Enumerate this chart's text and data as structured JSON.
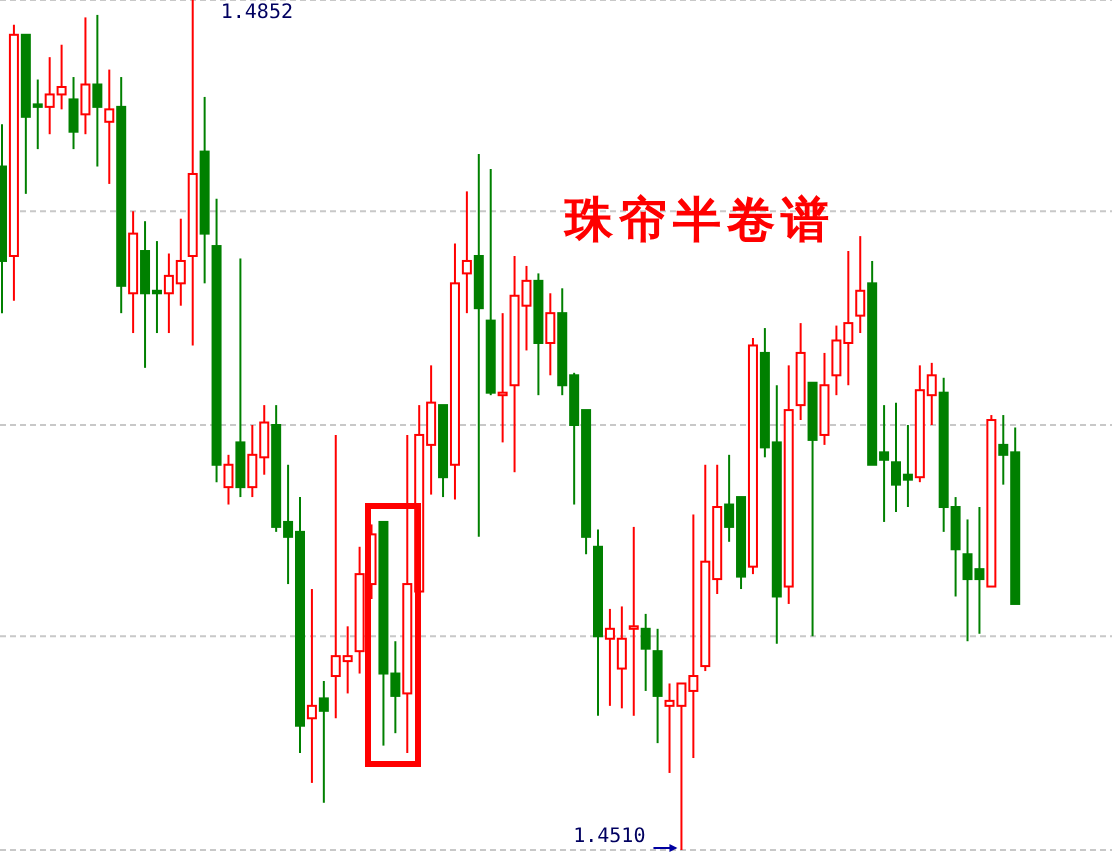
{
  "chart_data": {
    "type": "candlestick",
    "title": "珠帘半卷谱",
    "categories": [
      null,
      null,
      null,
      null,
      null,
      null,
      null,
      null,
      null,
      null,
      null,
      null,
      null,
      null,
      null,
      null,
      null,
      null,
      null,
      null,
      null,
      null,
      null,
      null,
      null,
      null,
      null,
      null,
      null,
      null,
      null,
      null,
      null,
      null,
      null,
      null,
      null,
      null,
      null,
      null,
      null,
      null,
      null,
      null,
      null,
      null,
      null,
      null,
      null,
      null,
      null,
      null,
      null,
      null,
      null,
      null,
      null,
      null,
      null,
      null,
      null,
      null,
      null,
      null,
      null,
      null,
      null,
      null,
      null,
      null,
      null,
      null,
      null,
      null,
      null,
      null,
      null,
      null,
      null,
      null,
      null,
      null,
      null,
      null,
      null,
      null
    ],
    "ohlc": [
      [
        1.4785,
        1.4802,
        1.4726,
        1.4747
      ],
      [
        1.4749,
        1.4842,
        1.4731,
        1.4838
      ],
      [
        1.4838,
        1.4838,
        1.4774,
        1.4805
      ],
      [
        1.481,
        1.482,
        1.4792,
        1.4809
      ],
      [
        1.4809,
        1.4829,
        1.4798,
        1.4814
      ],
      [
        1.4814,
        1.4834,
        1.4808,
        1.4817
      ],
      [
        1.4812,
        1.4821,
        1.4792,
        1.4799
      ],
      [
        1.4806,
        1.4845,
        1.4798,
        1.4818
      ],
      [
        1.4818,
        1.4846,
        1.4785,
        1.4809
      ],
      [
        1.4803,
        1.4824,
        1.4778,
        1.4808
      ],
      [
        1.4809,
        1.4821,
        1.4726,
        1.4737
      ],
      [
        1.4734,
        1.4767,
        1.4718,
        1.4758
      ],
      [
        1.4751,
        1.4763,
        1.4704,
        1.4734
      ],
      [
        1.4735,
        1.4755,
        1.4718,
        1.4734
      ],
      [
        1.4734,
        1.475,
        1.4718,
        1.4741
      ],
      [
        1.4738,
        1.4764,
        1.4729,
        1.4747
      ],
      [
        1.4749,
        1.4852,
        1.4713,
        1.4782
      ],
      [
        1.4791,
        1.4813,
        1.4738,
        1.4758
      ],
      [
        1.4753,
        1.4772,
        1.4658,
        1.4665
      ],
      [
        1.4656,
        1.4669,
        1.4649,
        1.4665
      ],
      [
        1.4674,
        1.4748,
        1.4652,
        1.4656
      ],
      [
        1.4656,
        1.4681,
        1.4652,
        1.4669
      ],
      [
        1.4668,
        1.4689,
        1.4661,
        1.4682
      ],
      [
        1.4681,
        1.4689,
        1.4638,
        1.464
      ],
      [
        1.4642,
        1.4665,
        1.4617,
        1.4636
      ],
      [
        1.4638,
        1.4652,
        1.4549,
        1.456
      ],
      [
        1.4563,
        1.4615,
        1.4537,
        1.4568
      ],
      [
        1.4571,
        1.4578,
        1.4529,
        1.4566
      ],
      [
        1.458,
        1.4677,
        1.4563,
        1.4588
      ],
      [
        1.4586,
        1.46,
        1.4573,
        1.4588
      ],
      [
        1.459,
        1.4632,
        1.4581,
        1.4621
      ],
      [
        1.4617,
        1.4641,
        1.4611,
        1.4637
      ],
      [
        1.4642,
        1.4642,
        1.4552,
        1.4581
      ],
      [
        1.4581,
        1.4594,
        1.4557,
        1.4572
      ],
      [
        1.4573,
        1.4677,
        1.4549,
        1.4617
      ],
      [
        1.4614,
        1.4689,
        1.4601,
        1.4677
      ],
      [
        1.4673,
        1.4705,
        1.4653,
        1.469
      ],
      [
        1.4689,
        1.4689,
        1.4652,
        1.466
      ],
      [
        1.4665,
        1.4754,
        1.4651,
        1.4738
      ],
      [
        1.4742,
        1.4775,
        1.4726,
        1.4747
      ],
      [
        1.4749,
        1.479,
        1.4636,
        1.4728
      ],
      [
        1.4723,
        1.4784,
        1.4693,
        1.4694
      ],
      [
        1.4693,
        1.4726,
        1.4674,
        1.4694
      ],
      [
        1.4697,
        1.4749,
        1.4662,
        1.4733
      ],
      [
        1.4729,
        1.4745,
        1.4711,
        1.4739
      ],
      [
        1.4739,
        1.4742,
        1.4693,
        1.4714
      ],
      [
        1.4714,
        1.4734,
        1.4701,
        1.4726
      ],
      [
        1.4726,
        1.4736,
        1.4693,
        1.4697
      ],
      [
        1.4701,
        1.4702,
        1.4649,
        1.4681
      ],
      [
        1.4687,
        1.4687,
        1.4629,
        1.4636
      ],
      [
        1.4632,
        1.4639,
        1.4564,
        1.4596
      ],
      [
        1.4595,
        1.4607,
        1.4568,
        1.4599
      ],
      [
        1.4583,
        1.4608,
        1.4567,
        1.4595
      ],
      [
        1.4599,
        1.464,
        1.4564,
        1.46
      ],
      [
        1.4599,
        1.4605,
        1.4574,
        1.4591
      ],
      [
        1.459,
        1.4599,
        1.4553,
        1.4572
      ],
      [
        1.4568,
        1.4577,
        1.4541,
        1.457
      ],
      [
        1.4568,
        1.4577,
        1.451,
        1.4577
      ],
      [
        1.4574,
        1.4645,
        1.4547,
        1.458
      ],
      [
        1.4584,
        1.4665,
        1.4582,
        1.4626
      ],
      [
        1.4619,
        1.4665,
        1.4613,
        1.4648
      ],
      [
        1.4649,
        1.4669,
        1.4634,
        1.464
      ],
      [
        1.4652,
        1.4652,
        1.4615,
        1.462
      ],
      [
        1.4624,
        1.4716,
        1.4621,
        1.4713
      ],
      [
        1.471,
        1.472,
        1.4668,
        1.4672
      ],
      [
        1.4674,
        1.4697,
        1.4593,
        1.4612
      ],
      [
        1.4616,
        1.4705,
        1.4609,
        1.4687
      ],
      [
        1.4689,
        1.4722,
        1.4683,
        1.471
      ],
      [
        1.4698,
        1.4698,
        1.4596,
        1.4675
      ],
      [
        1.4677,
        1.471,
        1.4673,
        1.4697
      ],
      [
        1.4701,
        1.4721,
        1.4693,
        1.4715
      ],
      [
        1.4714,
        1.4751,
        1.4697,
        1.4722
      ],
      [
        1.4725,
        1.4757,
        1.4718,
        1.4735
      ],
      [
        1.4738,
        1.4747,
        1.4665,
        1.4665
      ],
      [
        1.467,
        1.4689,
        1.4642,
        1.4667
      ],
      [
        1.4666,
        1.469,
        1.4646,
        1.4657
      ],
      [
        1.4661,
        1.4681,
        1.4648,
        1.4659
      ],
      [
        1.466,
        1.4705,
        1.4658,
        1.4695
      ],
      [
        1.4693,
        1.4706,
        1.4681,
        1.4701
      ],
      [
        1.4694,
        1.47,
        1.4638,
        1.4648
      ],
      [
        1.4648,
        1.4652,
        1.4612,
        1.4631
      ],
      [
        1.4629,
        1.4643,
        1.4594,
        1.4619
      ],
      [
        1.4623,
        1.4648,
        1.4597,
        1.4619
      ],
      [
        1.4616,
        1.4685,
        1.4616,
        1.4683
      ],
      [
        1.4673,
        1.4685,
        1.4657,
        1.4669
      ],
      [
        1.467,
        1.468,
        1.4609,
        1.4609
      ]
    ],
    "colors": [
      "#008000",
      "#ff0000",
      "#008000",
      "#008000",
      "#ff0000",
      "#ff0000",
      "#008000",
      "#ff0000",
      "#008000",
      "#ff0000",
      "#008000",
      "#ff0000",
      "#008000",
      "#008000",
      "#ff0000",
      "#ff0000",
      "#ff0000",
      "#008000",
      "#008000",
      "#ff0000",
      "#008000",
      "#ff0000",
      "#ff0000",
      "#008000",
      "#008000",
      "#008000",
      "#ff0000",
      "#008000",
      "#ff0000",
      "#ff0000",
      "#ff0000",
      "#ff0000",
      "#008000",
      "#008000",
      "#ff0000",
      "#ff0000",
      "#ff0000",
      "#008000",
      "#ff0000",
      "#ff0000",
      "#008000",
      "#008000",
      "#ff0000",
      "#ff0000",
      "#ff0000",
      "#008000",
      "#ff0000",
      "#008000",
      "#008000",
      "#008000",
      "#008000",
      "#ff0000",
      "#ff0000",
      "#ff0000",
      "#008000",
      "#008000",
      "#ff0000",
      "#ff0000",
      "#ff0000",
      "#ff0000",
      "#ff0000",
      "#008000",
      "#008000",
      "#ff0000",
      "#008000",
      "#008000",
      "#ff0000",
      "#ff0000",
      "#008000",
      "#ff0000",
      "#ff0000",
      "#ff0000",
      "#ff0000",
      "#008000",
      "#008000",
      "#008000",
      "#008000",
      "#ff0000",
      "#ff0000",
      "#008000",
      "#008000",
      "#008000",
      "#008000",
      "#ff0000",
      "#008000",
      "#008000"
    ],
    "ylim": [
      1.451,
      1.4852
    ],
    "yticks": [
      {
        "value": 1.4852,
        "label": null
      },
      {
        "value": 1.4767,
        "label": null
      },
      {
        "value": 1.4681,
        "label": null
      },
      {
        "value": 1.4596,
        "label": null
      },
      {
        "value": 1.451,
        "label": null
      }
    ],
    "grid": "y",
    "annotations": [
      "1.4852",
      "1.4510"
    ]
  }
}
